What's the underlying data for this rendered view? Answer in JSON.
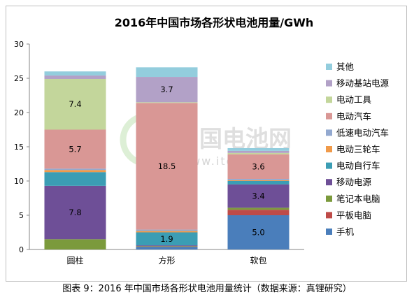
{
  "chart_data": {
    "type": "bar",
    "stacked": true,
    "title": "2016年中国市场各形状电池用量/GWh",
    "categories": [
      "圆柱",
      "方形",
      "软包"
    ],
    "ylim": [
      0,
      30
    ],
    "yticks": [
      "0",
      "5",
      "10",
      "15",
      "20",
      "25",
      "30"
    ],
    "grid": false,
    "legend_position": "right",
    "series": [
      {
        "name": "手机",
        "color": "#4a7ebb",
        "values": [
          0,
          0.4,
          5.0
        ],
        "labels": [
          "",
          "",
          "5.0"
        ]
      },
      {
        "name": "平板电脑",
        "color": "#be4b48",
        "values": [
          0,
          0.05,
          0.8
        ],
        "labels": [
          "",
          "",
          ""
        ]
      },
      {
        "name": "笔记本电脑",
        "color": "#7b9a3c",
        "values": [
          1.5,
          0.05,
          0.3
        ],
        "labels": [
          "",
          "",
          ""
        ]
      },
      {
        "name": "移动电源",
        "color": "#6e4f97",
        "values": [
          7.8,
          0.1,
          3.4
        ],
        "labels": [
          "7.8",
          "",
          "3.4"
        ]
      },
      {
        "name": "电动自行车",
        "color": "#3b9db4",
        "values": [
          2.0,
          1.9,
          0.5
        ],
        "labels": [
          "",
          "1.9",
          ""
        ]
      },
      {
        "name": "电动三轮车",
        "color": "#f09a4a",
        "values": [
          0.3,
          0.2,
          0.1
        ],
        "labels": [
          "",
          "",
          ""
        ]
      },
      {
        "name": "低速电动汽车",
        "color": "#93a9d0",
        "values": [
          0.2,
          0.2,
          0.2
        ],
        "labels": [
          "",
          "",
          ""
        ]
      },
      {
        "name": "电动汽车",
        "color": "#d99795",
        "values": [
          5.7,
          18.5,
          3.6
        ],
        "labels": [
          "5.7",
          "18.5",
          "3.6"
        ]
      },
      {
        "name": "电动工具",
        "color": "#c3d69b",
        "values": [
          7.4,
          0.1,
          0.2
        ],
        "labels": [
          "7.4",
          "",
          ""
        ]
      },
      {
        "name": "移动基站电源",
        "color": "#b2a1c7",
        "values": [
          0.5,
          3.7,
          0.3
        ],
        "labels": [
          "",
          "3.7",
          ""
        ]
      },
      {
        "name": "其他",
        "color": "#93cddd",
        "values": [
          0.6,
          1.4,
          0.4
        ],
        "labels": [
          "",
          "",
          ""
        ]
      }
    ]
  },
  "watermark": {
    "text": "中国电池网",
    "url": "www.itdcw.com"
  },
  "caption": "图表 9：2016 年中国市场各形状电池用量统计（数据来源：真锂研究）"
}
